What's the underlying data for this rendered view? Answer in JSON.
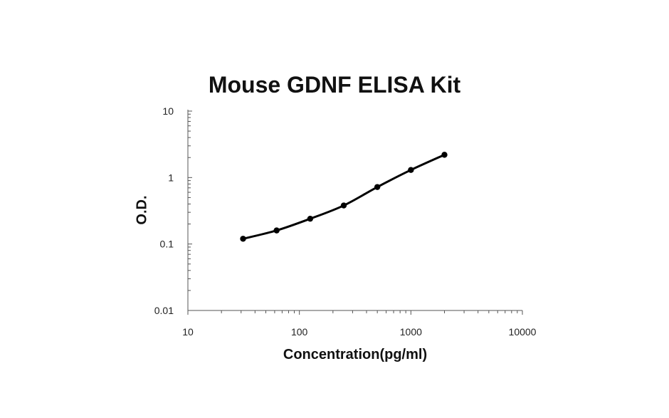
{
  "chart_data": {
    "type": "line",
    "title": "Mouse GDNF ELISA Kit",
    "xlabel": "Concentration(pg/ml)",
    "ylabel": "O.D.",
    "x_scale": "log",
    "y_scale": "log",
    "xlim": [
      10,
      10000
    ],
    "ylim": [
      0.01,
      10
    ],
    "x_ticks": [
      "10",
      "100",
      "1000",
      "10000"
    ],
    "y_ticks": [
      "0.01",
      "0.1",
      "1",
      "10"
    ],
    "grid": false,
    "series": [
      {
        "x": [
          31.25,
          62.5,
          125,
          250,
          500,
          1000,
          2000
        ],
        "y": [
          0.12,
          0.16,
          0.24,
          0.38,
          0.72,
          1.3,
          2.2
        ]
      }
    ],
    "line_color": "#000000"
  }
}
